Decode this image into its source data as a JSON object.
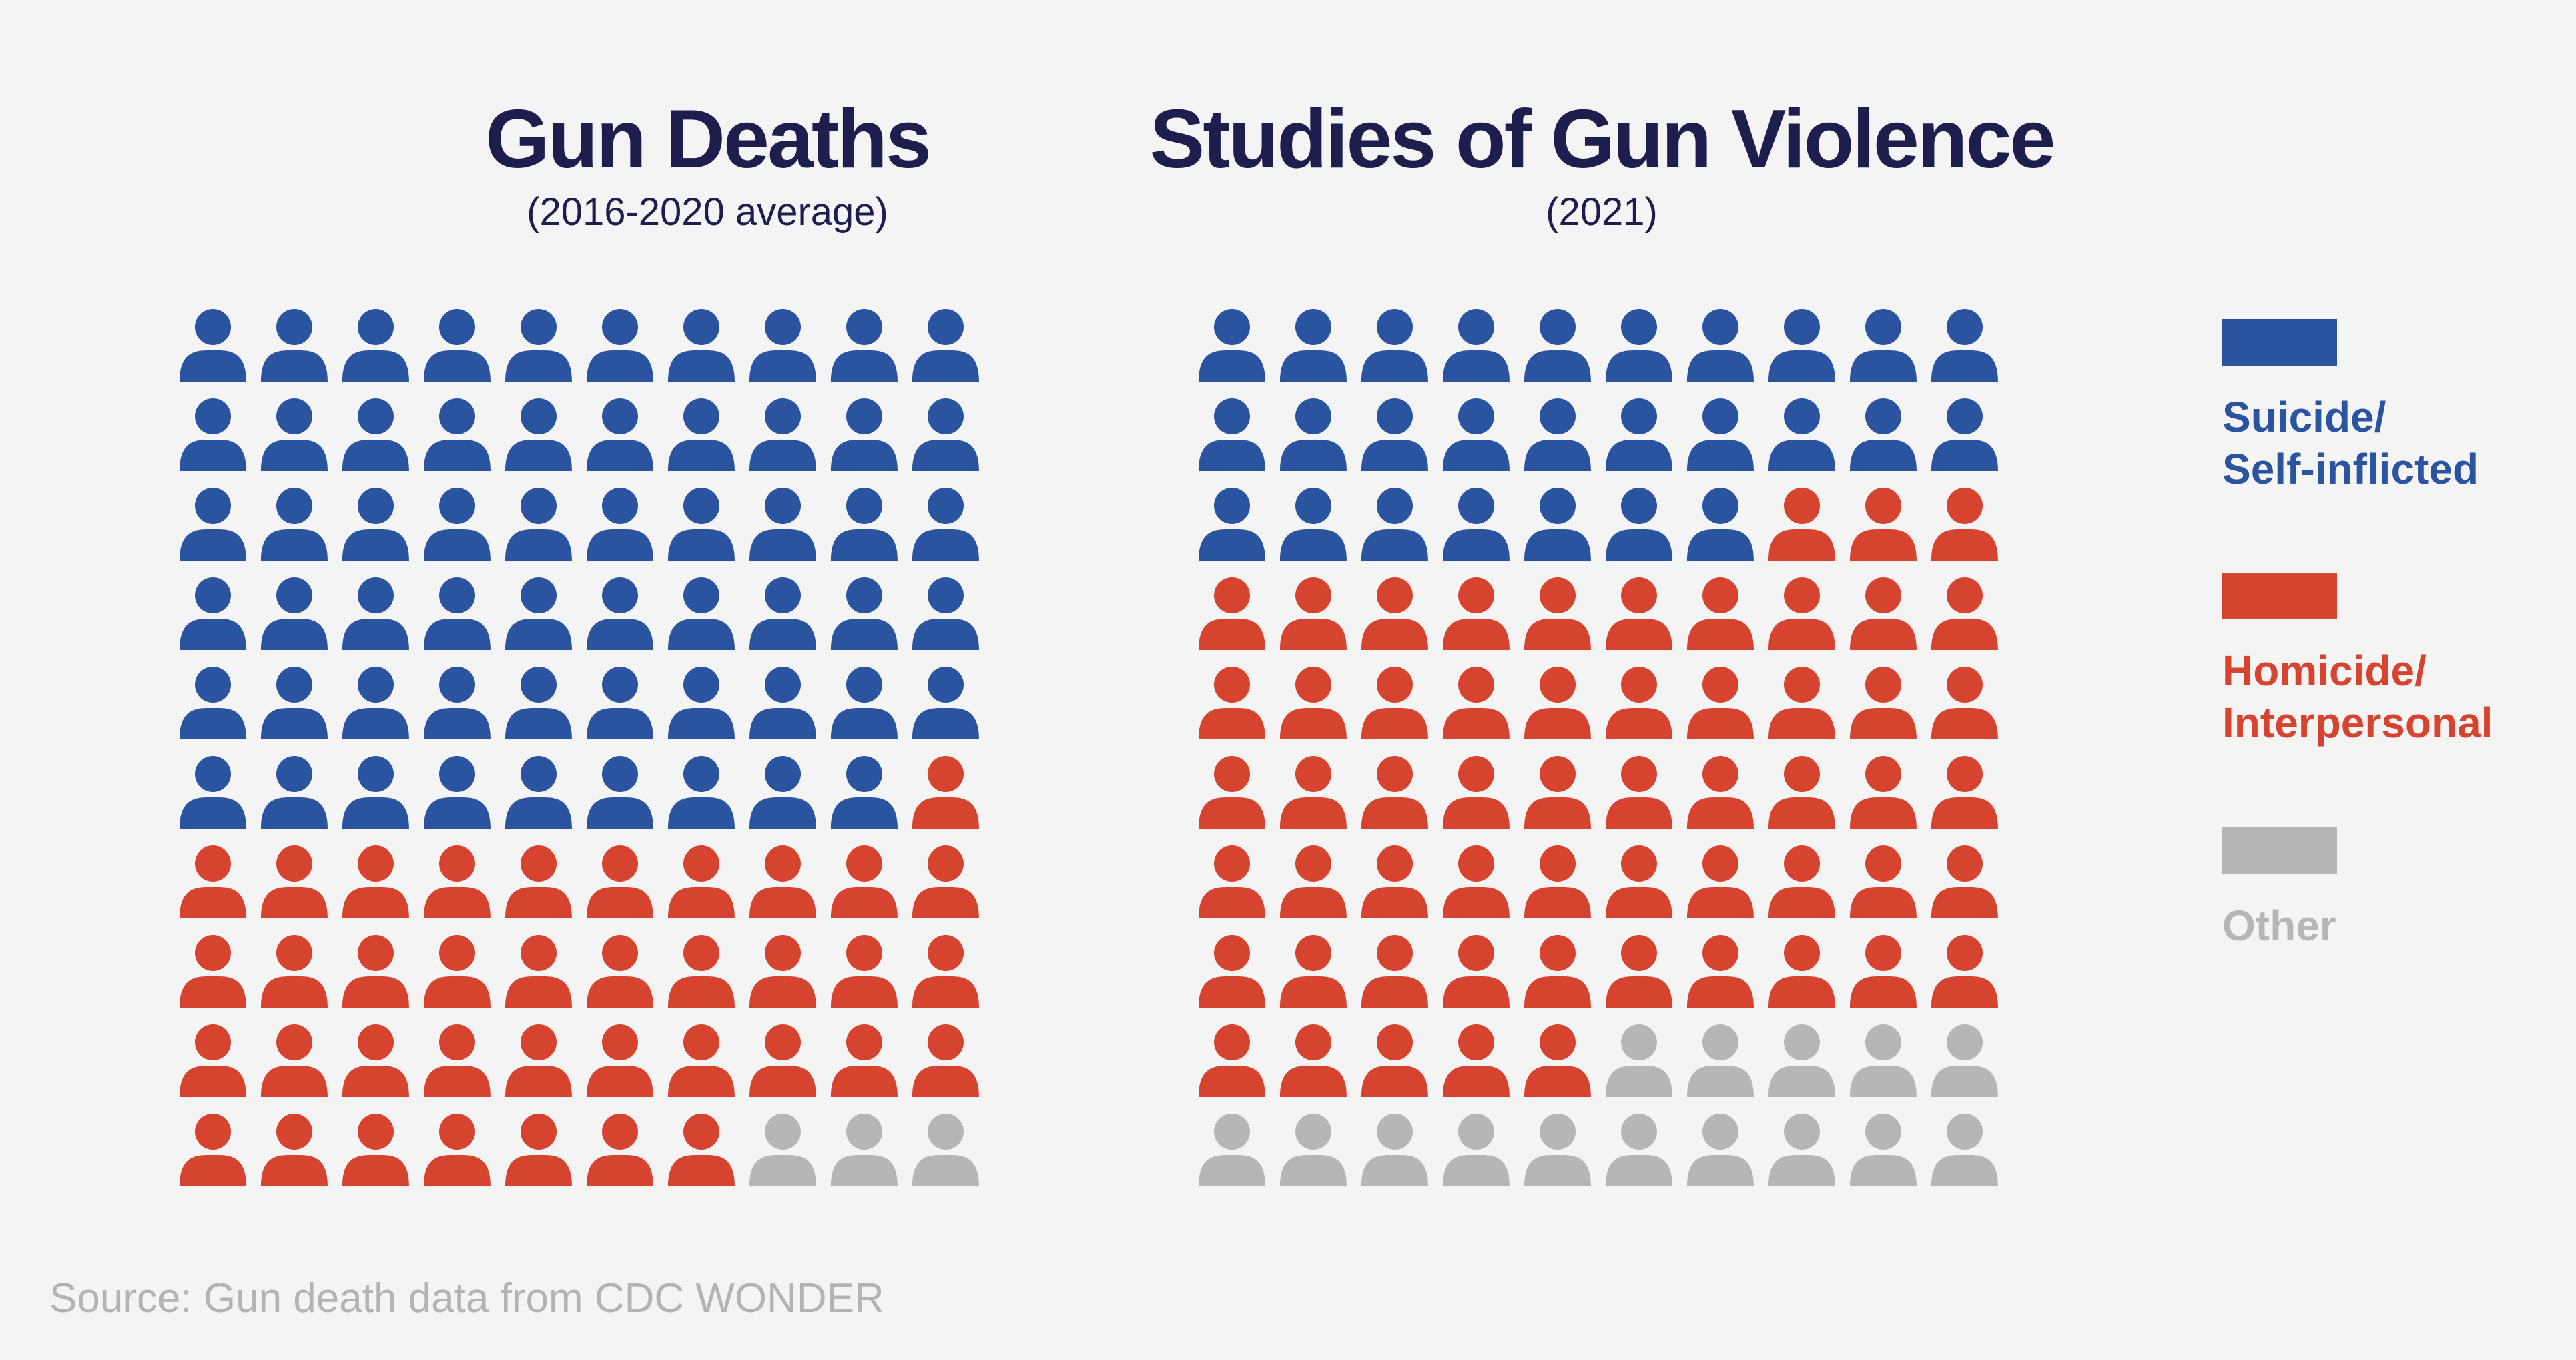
{
  "colors": {
    "background": "#f4f4f4",
    "title": "#1d1e4e",
    "suicide": "#2a53a0",
    "homicide": "#d6432f",
    "other": "#b6b6b6",
    "source": "#b3b3b3"
  },
  "legend": {
    "items": [
      {
        "key": "suicide",
        "line1": "Suicide/",
        "line2": "Self-inflicted",
        "color": "#2a53a0"
      },
      {
        "key": "homicide",
        "line1": "Homicide/",
        "line2": "Interpersonal",
        "color": "#d6432f"
      },
      {
        "key": "other",
        "line1": "Other",
        "line2": "",
        "color": "#b6b6b6"
      }
    ]
  },
  "source": "Source: Gun death data from CDC WONDER",
  "chart_data": [
    {
      "type": "waffle",
      "title": "Gun Deaths",
      "subtitle": "(2016-2020 average)",
      "grid": {
        "rows": 10,
        "cols": 10
      },
      "categories": [
        "Suicide/Self-inflicted",
        "Homicide/Interpersonal",
        "Other"
      ],
      "values": [
        59,
        38,
        3
      ],
      "unit": "icons out of 100"
    },
    {
      "type": "waffle",
      "title": "Studies of Gun Violence",
      "subtitle": "(2021)",
      "grid": {
        "rows": 10,
        "cols": 10
      },
      "categories": [
        "Suicide/Self-inflicted",
        "Homicide/Interpersonal",
        "Other"
      ],
      "values": [
        27,
        58,
        15
      ],
      "unit": "icons out of 100"
    }
  ]
}
